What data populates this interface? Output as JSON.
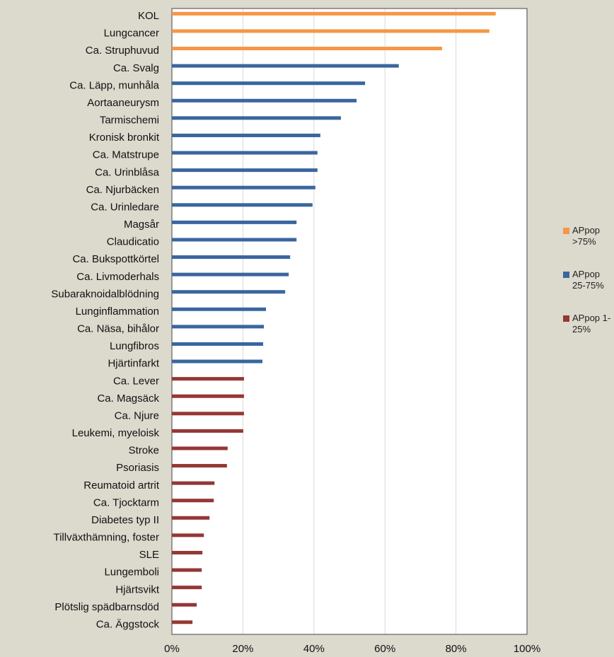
{
  "chart_data": {
    "type": "bar",
    "orientation": "horizontal",
    "categories": [
      "KOL",
      "Lungcancer",
      "Ca. Struphuvud",
      "Ca. Svalg",
      "Ca. Läpp, munhåla",
      "Aortaaneurysm",
      "Tarmischemi",
      "Kronisk bronkit",
      "Ca. Matstrupe",
      "Ca. Urinblåsa",
      "Ca. Njurbäcken",
      "Ca. Urinledare",
      "Magsår",
      "Claudicatio",
      "Ca. Bukspottkörtel",
      "Ca. Livmoderhals",
      "Subaraknoidalblödning",
      "Lunginflammation",
      "Ca. Näsa, bihålor",
      "Lungfibros",
      "Hjärtinfarkt",
      "Ca. Lever",
      "Ca. Magsäck",
      "Ca. Njure",
      "Leukemi, myeloisk",
      "Stroke",
      "Psoriasis",
      "Reumatoid artrit",
      "Ca. Tjocktarm",
      "Diabetes typ II",
      "Tillväxthämning, foster",
      "SLE",
      "Lungemboli",
      "Hjärtsvikt",
      "Plötslig spädbarnsdöd",
      "Ca. Äggstock"
    ],
    "series": [
      {
        "name": "APpop >75%",
        "color": "#f79646",
        "values": [
          91.2,
          89.4,
          76.1,
          null,
          null,
          null,
          null,
          null,
          null,
          null,
          null,
          null,
          null,
          null,
          null,
          null,
          null,
          null,
          null,
          null,
          null,
          null,
          null,
          null,
          null,
          null,
          null,
          null,
          null,
          null,
          null,
          null,
          null,
          null,
          null,
          null
        ]
      },
      {
        "name": "APpop 25-75%",
        "color": "#3a66a0",
        "values": [
          null,
          null,
          null,
          63.9,
          54.4,
          52.0,
          47.6,
          41.8,
          41.0,
          41.0,
          40.4,
          39.6,
          35.1,
          35.1,
          33.3,
          32.9,
          31.9,
          26.5,
          25.9,
          25.7,
          25.5,
          null,
          null,
          null,
          null,
          null,
          null,
          null,
          null,
          null,
          null,
          null,
          null,
          null,
          null,
          null
        ]
      },
      {
        "name": "APpop 1-25%",
        "color": "#953735",
        "values": [
          null,
          null,
          null,
          null,
          null,
          null,
          null,
          null,
          null,
          null,
          null,
          null,
          null,
          null,
          null,
          null,
          null,
          null,
          null,
          null,
          null,
          20.3,
          20.3,
          20.3,
          20.1,
          15.7,
          15.5,
          12.0,
          11.8,
          10.6,
          9.0,
          8.6,
          8.4,
          8.4,
          7.0,
          5.8
        ]
      }
    ],
    "xlim": [
      0,
      100
    ],
    "xticks": [
      {
        "value": 0,
        "label": "0%"
      },
      {
        "value": 20,
        "label": "20%"
      },
      {
        "value": 40,
        "label": "40%"
      },
      {
        "value": 60,
        "label": "60%"
      },
      {
        "value": 80,
        "label": "80%"
      },
      {
        "value": 100,
        "label": "100%"
      }
    ],
    "grid": true
  }
}
